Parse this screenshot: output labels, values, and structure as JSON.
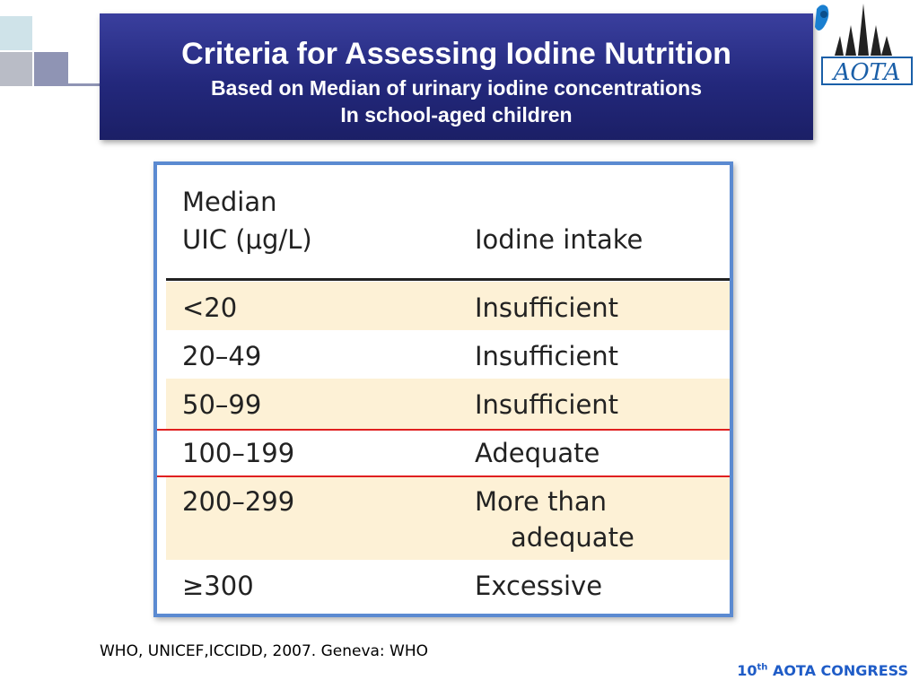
{
  "title": {
    "line1": "Criteria for Assessing Iodine Nutrition",
    "line2": "Based on Median of urinary iodine concentrations",
    "line3": "In school-aged children"
  },
  "logo": {
    "text": "AOTA"
  },
  "table": {
    "header_col1_line1": "Median",
    "header_col1_line2": "UIC (μg/L)",
    "header_col2": "Iodine intake",
    "rows": [
      {
        "uic": "<20",
        "intake": "Insufficient"
      },
      {
        "uic": "20–49",
        "intake": "Insufficient"
      },
      {
        "uic": "50–99",
        "intake": "Insufficient"
      },
      {
        "uic": "100–199",
        "intake": "Adequate"
      },
      {
        "uic": "200–299",
        "intake_line1": "More than",
        "intake_line2": "adequate"
      },
      {
        "uic": "≥300",
        "intake": "Excessive"
      }
    ]
  },
  "source": "WHO, UNICEF,ICCIDD,  2007. Geneva: WHO",
  "footer": {
    "number": "10",
    "suffix": "th",
    "text": " AOTA CONGRESS"
  },
  "colors": {
    "banner": "#23287c",
    "band": "#fdf1d6",
    "frame": "#5b8ad1",
    "accent_red": "#e02020"
  }
}
